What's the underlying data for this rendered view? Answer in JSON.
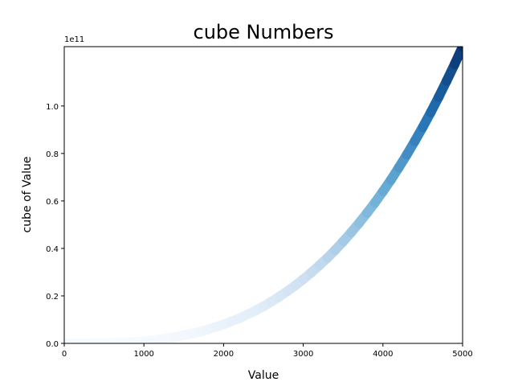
{
  "chart_data": {
    "type": "scatter",
    "title": "cube Numbers",
    "x_label": "Value",
    "y_label": "cube of Value",
    "y_offset_label": "1e11",
    "x": [
      0,
      100,
      200,
      300,
      400,
      500,
      600,
      700,
      800,
      900,
      1000,
      1100,
      1200,
      1300,
      1400,
      1500,
      1600,
      1700,
      1800,
      1900,
      2000,
      2100,
      2200,
      2300,
      2400,
      2500,
      2600,
      2700,
      2800,
      2900,
      3000,
      3100,
      3200,
      3300,
      3400,
      3500,
      3600,
      3700,
      3800,
      3900,
      4000,
      4100,
      4200,
      4300,
      4400,
      4500,
      4600,
      4700,
      4800,
      4900,
      5000
    ],
    "values": [
      0,
      0,
      0,
      0,
      0.001,
      0.001,
      0.002,
      0.003,
      0.005,
      0.007,
      0.01,
      0.013,
      0.017,
      0.022,
      0.027,
      0.034,
      0.041,
      0.049,
      0.058,
      0.069,
      0.08,
      0.093,
      0.106,
      0.122,
      0.138,
      0.156,
      0.176,
      0.197,
      0.22,
      0.244,
      0.27,
      0.298,
      0.328,
      0.359,
      0.393,
      0.429,
      0.467,
      0.507,
      0.549,
      0.593,
      0.64,
      0.689,
      0.741,
      0.795,
      0.852,
      0.911,
      0.973,
      1.038,
      1.106,
      1.176,
      1.25
    ],
    "colormap": [
      "#f7fbff",
      "#c6dbef",
      "#6baed6",
      "#2171b5",
      "#08306b"
    ],
    "xlim": [
      0,
      5000
    ],
    "xticks": [
      0,
      1000,
      2000,
      3000,
      4000,
      5000
    ],
    "ylim": [
      0,
      1.25
    ],
    "yticks": [
      {
        "value": 0,
        "label": "0.0"
      },
      0.2,
      0.4,
      0.6,
      0.8,
      {
        "value": 1,
        "label": "1.0"
      }
    ]
  }
}
